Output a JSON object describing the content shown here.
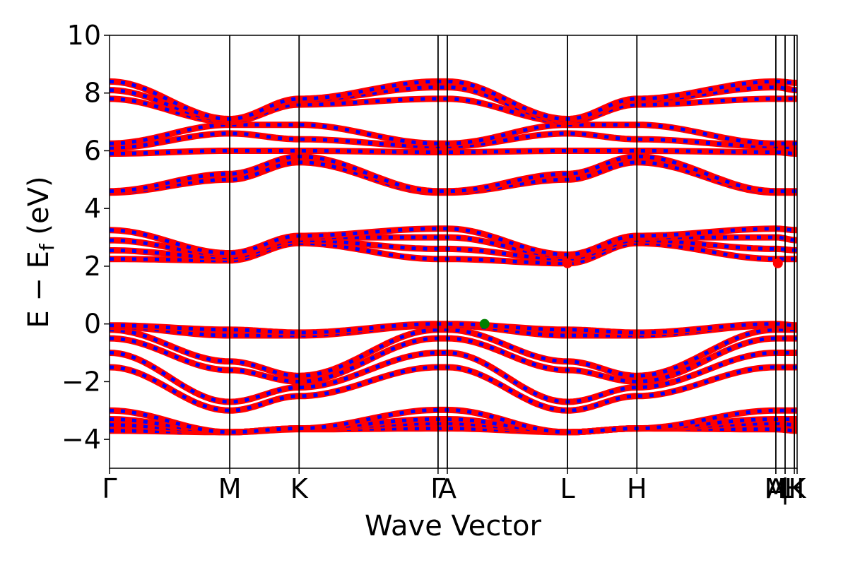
{
  "chart_data": {
    "type": "line",
    "title": "",
    "xlabel": "Wave Vector",
    "ylabel": "E − E",
    "ylabel_sub": "f",
    "ylabel_unit": " (eV)",
    "ylim": [
      -5,
      10
    ],
    "yticks": [
      -4,
      -2,
      0,
      2,
      4,
      6,
      8,
      10
    ],
    "ytick_labels": [
      "−4",
      "−2",
      "0",
      "2",
      "4",
      "6",
      "8",
      "10"
    ],
    "xlim": [
      0,
      5.72
    ],
    "kpoints": [
      {
        "label": "Γ",
        "x": 0.0
      },
      {
        "label": "M",
        "x": 1.0
      },
      {
        "label": "K",
        "x": 1.577
      },
      {
        "label": "Γ",
        "x": 2.733
      },
      {
        "label": "A",
        "x": 2.81
      },
      {
        "label": "L",
        "x": 3.81
      },
      {
        "label": "H",
        "x": 4.387
      },
      {
        "label": "A",
        "x": 5.543
      },
      {
        "label": "M",
        "x": 5.543
      },
      {
        "label": "|",
        "x": 5.62
      },
      {
        "label": "L",
        "x": 5.62
      },
      {
        "label": "H",
        "x": 5.697
      },
      {
        "label": "K",
        "x": 5.72
      }
    ],
    "kline_positions": [
      1.0,
      1.577,
      2.733,
      2.81,
      3.81,
      4.387,
      5.543,
      5.62,
      5.697
    ],
    "grid": false,
    "series": [
      {
        "name": "",
        "color": "#ff0000",
        "dash_color": "#0000ff"
      }
    ],
    "band_groups": [
      {
        "id": "g1",
        "bands": [
          {
            "y": [
              -3.7,
              -3.75,
              -3.65,
              -3.62,
              -3.62,
              -3.75,
              -3.62,
              -3.65,
              -3.7
            ]
          },
          {
            "y": [
              -3.5,
              -3.75,
              -3.62,
              -3.45,
              -3.45,
              -3.75,
              -3.62,
              -3.45,
              -3.5
            ]
          },
          {
            "y": [
              -3.3,
              -3.75,
              -3.62,
              -3.3,
              -3.3,
              -3.75,
              -3.62,
              -3.3,
              -3.3
            ]
          },
          {
            "y": [
              -3.0,
              -3.75,
              -3.62,
              -2.98,
              -2.98,
              -3.75,
              -3.62,
              -3.0,
              -3.0
            ]
          }
        ]
      },
      {
        "id": "g2",
        "bands": [
          {
            "y": [
              -1.5,
              -3.0,
              -2.5,
              -1.5,
              -1.5,
              -3.0,
              -2.5,
              -1.5,
              -1.5
            ]
          },
          {
            "y": [
              -1.0,
              -2.7,
              -2.2,
              -1.0,
              -1.0,
              -2.7,
              -2.2,
              -1.0,
              -1.0
            ]
          },
          {
            "y": [
              -0.5,
              -1.6,
              -2.0,
              -0.5,
              -0.5,
              -1.6,
              -2.0,
              -0.5,
              -0.5
            ]
          },
          {
            "y": [
              -0.2,
              -1.3,
              -1.8,
              -0.2,
              -0.2,
              -1.3,
              -1.8,
              -0.2,
              -0.2
            ]
          },
          {
            "y": [
              -0.1,
              -0.4,
              -0.4,
              -0.05,
              -0.05,
              -0.4,
              -0.4,
              -0.05,
              -0.1
            ]
          },
          {
            "y": [
              -0.05,
              -0.2,
              -0.3,
              0.0,
              0.0,
              -0.2,
              -0.3,
              0.0,
              -0.05
            ]
          }
        ]
      },
      {
        "id": "g3",
        "bands": [
          {
            "y": [
              2.25,
              2.2,
              2.8,
              2.25,
              2.25,
              2.1,
              2.8,
              2.25,
              2.25
            ]
          },
          {
            "y": [
              2.55,
              2.3,
              2.9,
              2.6,
              2.6,
              2.25,
              2.9,
              2.6,
              2.55
            ]
          },
          {
            "y": [
              2.9,
              2.4,
              3.0,
              3.0,
              3.0,
              2.35,
              3.0,
              3.0,
              2.9
            ]
          },
          {
            "y": [
              3.25,
              2.45,
              3.05,
              3.3,
              3.3,
              2.4,
              3.05,
              3.3,
              3.25
            ]
          }
        ]
      },
      {
        "id": "g4",
        "bands": [
          {
            "y": [
              4.55,
              5.0,
              5.6,
              4.55,
              4.55,
              5.0,
              5.6,
              4.55,
              4.55
            ]
          },
          {
            "y": [
              4.6,
              5.2,
              5.8,
              4.6,
              4.6,
              5.2,
              5.8,
              4.6,
              4.6
            ]
          },
          {
            "y": [
              5.9,
              6.0,
              6.0,
              5.95,
              5.95,
              6.0,
              6.0,
              5.95,
              5.9
            ]
          },
          {
            "y": [
              6.1,
              6.6,
              6.4,
              6.15,
              6.15,
              6.6,
              6.4,
              6.15,
              6.1
            ]
          },
          {
            "y": [
              6.25,
              6.9,
              6.9,
              6.25,
              6.25,
              6.9,
              6.9,
              6.25,
              6.25
            ]
          },
          {
            "y": [
              7.8,
              7.0,
              7.6,
              7.8,
              7.8,
              7.0,
              7.6,
              7.8,
              7.8
            ]
          },
          {
            "y": [
              8.1,
              7.05,
              7.75,
              8.2,
              8.2,
              7.05,
              7.75,
              8.2,
              8.1
            ]
          },
          {
            "y": [
              8.4,
              7.1,
              7.8,
              8.4,
              8.4,
              7.1,
              7.8,
              8.4,
              8.35
            ]
          }
        ]
      }
    ],
    "markers": [
      {
        "name": "vbm",
        "x": 3.12,
        "y": 0.0,
        "color": "#008000"
      },
      {
        "name": "cbm-l",
        "x": 3.81,
        "y": 2.1,
        "color": "#ff0000"
      },
      {
        "name": "cbm-m",
        "x": 5.56,
        "y": 2.1,
        "color": "#ff0000"
      }
    ]
  }
}
